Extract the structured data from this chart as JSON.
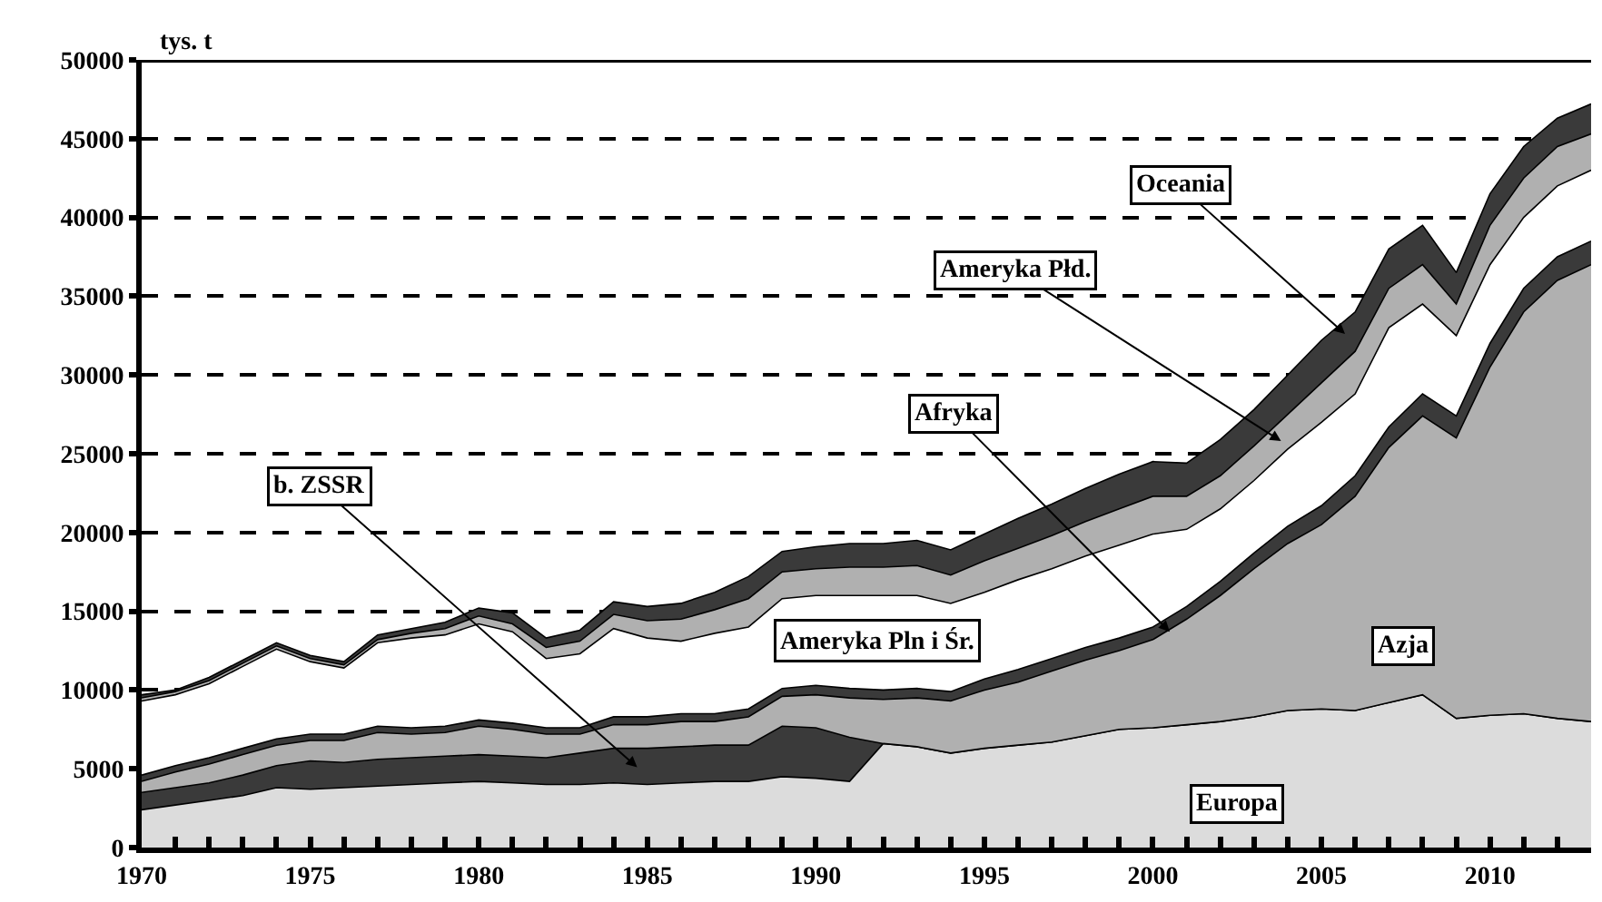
{
  "chart_data": {
    "type": "area",
    "stacked": true,
    "ylabel": "tys. t",
    "x": [
      1970,
      1971,
      1972,
      1973,
      1974,
      1975,
      1976,
      1977,
      1978,
      1979,
      1980,
      1981,
      1982,
      1983,
      1984,
      1985,
      1986,
      1987,
      1988,
      1989,
      1990,
      1991,
      1992,
      1993,
      1994,
      1995,
      1996,
      1997,
      1998,
      1999,
      2000,
      2001,
      2002,
      2003,
      2004,
      2005,
      2006,
      2007,
      2008,
      2009,
      2010,
      2011,
      2012,
      2013
    ],
    "series": [
      {
        "color": "#dcdcdc",
        "values": [
          2400,
          2700,
          3000,
          3300,
          3800,
          3700,
          3800,
          3900,
          4000,
          4100,
          4200,
          4100,
          4000,
          4000,
          4100,
          4000,
          4100,
          4200,
          4200,
          4500,
          4400,
          4200,
          6600,
          6400,
          6000,
          6300,
          6500,
          6700,
          7100,
          7500,
          7600,
          7800,
          8000,
          8300,
          8700,
          8800,
          8700,
          9200,
          9700,
          8200,
          8400,
          8500,
          8200,
          8000
        ]
      },
      {
        "color": "#3a3a3a",
        "values": [
          1100,
          1100,
          1100,
          1300,
          1400,
          1800,
          1600,
          1700,
          1700,
          1700,
          1700,
          1700,
          1700,
          2000,
          2200,
          2300,
          2300,
          2300,
          2300,
          3200,
          3200,
          2800,
          0,
          0,
          0,
          0,
          0,
          0,
          0,
          0,
          0,
          0,
          0,
          0,
          0,
          0,
          0,
          0,
          0,
          0,
          0,
          0,
          0,
          0
        ]
      },
      {
        "color": "#b0b0b0",
        "values": [
          700,
          1000,
          1200,
          1300,
          1300,
          1300,
          1400,
          1700,
          1500,
          1500,
          1800,
          1700,
          1500,
          1200,
          1500,
          1500,
          1600,
          1500,
          1800,
          1900,
          2100,
          2500,
          2800,
          3100,
          3300,
          3700,
          4000,
          4500,
          4800,
          5000,
          5600,
          6700,
          8000,
          9400,
          10600,
          11700,
          13600,
          16200,
          17700,
          17800,
          22100,
          25500,
          27800,
          29000
        ]
      },
      {
        "color": "#3a3a3a",
        "values": [
          400,
          400,
          400,
          400,
          400,
          400,
          400,
          400,
          400,
          400,
          400,
          400,
          400,
          400,
          500,
          500,
          500,
          500,
          500,
          500,
          600,
          600,
          600,
          600,
          600,
          700,
          800,
          800,
          800,
          800,
          800,
          800,
          900,
          1000,
          1100,
          1200,
          1300,
          1300,
          1400,
          1400,
          1500,
          1500,
          1500,
          1500
        ]
      },
      {
        "color": "#ffffff",
        "values": [
          4700,
          4500,
          4700,
          5200,
          5700,
          4600,
          4200,
          5300,
          5700,
          5800,
          6100,
          5800,
          4400,
          4700,
          5600,
          5000,
          4600,
          5100,
          5200,
          5700,
          5700,
          5900,
          6000,
          5900,
          5600,
          5500,
          5700,
          5700,
          5800,
          5900,
          5900,
          4900,
          4600,
          4600,
          4900,
          5300,
          5200,
          6300,
          5700,
          5100,
          5000,
          4500,
          4500,
          4500
        ]
      },
      {
        "color": "#b0b0b0",
        "values": [
          200,
          200,
          200,
          200,
          200,
          200,
          200,
          200,
          300,
          400,
          500,
          500,
          700,
          800,
          900,
          1100,
          1400,
          1500,
          1800,
          1700,
          1700,
          1800,
          1800,
          1900,
          1800,
          2000,
          2000,
          2100,
          2200,
          2300,
          2400,
          2100,
          2100,
          2200,
          2200,
          2500,
          2700,
          2500,
          2500,
          2000,
          2500,
          2500,
          2500,
          2300
        ]
      },
      {
        "color": "#3a3a3a",
        "values": [
          200,
          100,
          200,
          200,
          200,
          200,
          200,
          300,
          300,
          400,
          500,
          700,
          600,
          700,
          800,
          900,
          1000,
          1100,
          1400,
          1300,
          1400,
          1500,
          1500,
          1600,
          1600,
          1700,
          1900,
          2000,
          2100,
          2200,
          2200,
          2100,
          2300,
          2300,
          2500,
          2700,
          2500,
          2500,
          2500,
          2000,
          2000,
          2000,
          1800,
          1900
        ]
      }
    ],
    "xlim": [
      1970,
      2013
    ],
    "xticks": [
      1970,
      {
        "value": 1971,
        "label": null
      },
      {
        "value": 1972,
        "label": null
      },
      {
        "value": 1973,
        "label": null
      },
      {
        "value": 1974,
        "label": null
      },
      1975,
      {
        "value": 1976,
        "label": null
      },
      {
        "value": 1977,
        "label": null
      },
      {
        "value": 1978,
        "label": null
      },
      {
        "value": 1979,
        "label": null
      },
      1980,
      {
        "value": 1981,
        "label": null
      },
      {
        "value": 1982,
        "label": null
      },
      {
        "value": 1983,
        "label": null
      },
      {
        "value": 1984,
        "label": null
      },
      1985,
      {
        "value": 1986,
        "label": null
      },
      {
        "value": 1987,
        "label": null
      },
      {
        "value": 1988,
        "label": null
      },
      {
        "value": 1989,
        "label": null
      },
      1990,
      {
        "value": 1991,
        "label": null
      },
      {
        "value": 1992,
        "label": null
      },
      {
        "value": 1993,
        "label": null
      },
      {
        "value": 1994,
        "label": null
      },
      1995,
      {
        "value": 1996,
        "label": null
      },
      {
        "value": 1997,
        "label": null
      },
      {
        "value": 1998,
        "label": null
      },
      {
        "value": 1999,
        "label": null
      },
      2000,
      {
        "value": 2001,
        "label": null
      },
      {
        "value": 2002,
        "label": null
      },
      {
        "value": 2003,
        "label": null
      },
      {
        "value": 2004,
        "label": null
      },
      2005,
      {
        "value": 2006,
        "label": null
      },
      {
        "value": 2007,
        "label": null
      },
      {
        "value": 2008,
        "label": null
      },
      {
        "value": 2009,
        "label": null
      },
      2010,
      {
        "value": 2011,
        "label": null
      },
      {
        "value": 2012,
        "label": null
      }
    ],
    "ylim": [
      0,
      50000
    ],
    "yticks": [
      0,
      5000,
      10000,
      15000,
      20000,
      25000,
      30000,
      35000,
      40000,
      45000,
      50000
    ],
    "grid": "y",
    "annotations": [
      "b. ZSSR",
      {
        "text": "Afryka",
        "x": 2000.5,
        "y": 13700
      },
      "Ameryka Płd.",
      "Oceania",
      "Ameryka Pln i Śr.",
      "Azja",
      "Europa"
    ]
  }
}
